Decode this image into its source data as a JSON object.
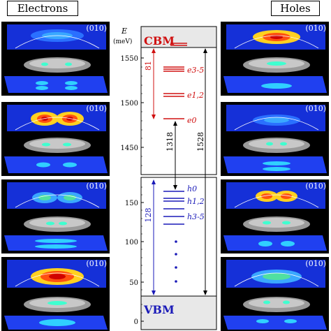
{
  "headers": {
    "left": "Electrons",
    "right": "Holes"
  },
  "panel_label": "(010)",
  "axis": {
    "e_label": "E",
    "unit": "(meV)"
  },
  "ticks_top": [
    "1550",
    "1500",
    "1450"
  ],
  "ticks_bottom": [
    "150",
    "100",
    "50",
    "0"
  ],
  "band_labels": {
    "cbm": "CBM",
    "vbm": "VBM"
  },
  "electron_levels": [
    "e3-5",
    "e1,2",
    "e0"
  ],
  "hole_levels": [
    "h0",
    "h1,2",
    "h3-5"
  ],
  "spans": {
    "electron": "81",
    "hole": "128",
    "gap": "1318",
    "total": "1528"
  },
  "colors": {
    "electron": "#d01010",
    "hole": "#1a1ab8",
    "band": "#e8e8e8"
  }
}
